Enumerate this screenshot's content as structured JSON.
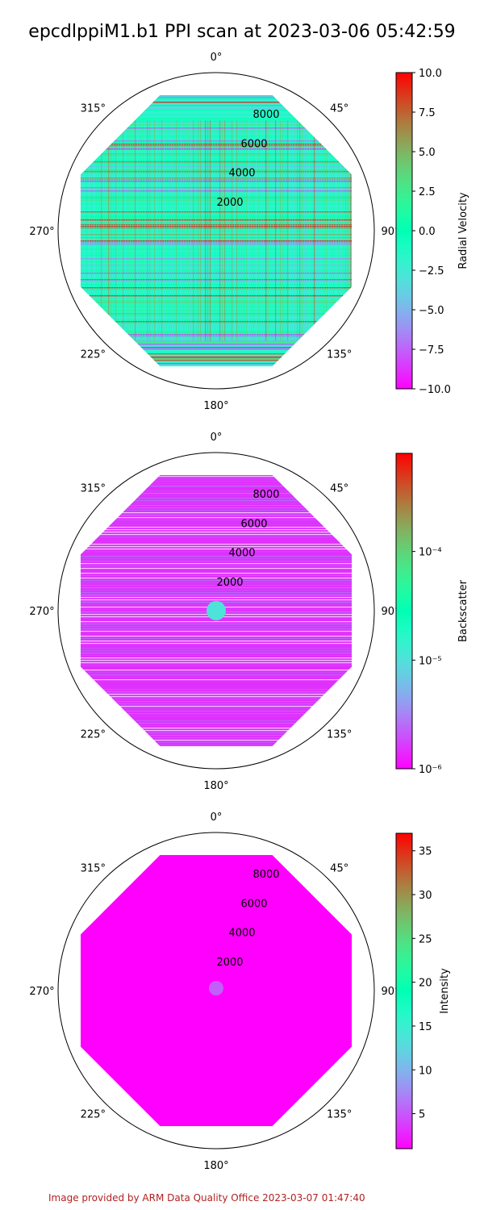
{
  "title": "epcdlppiM1.b1 PPI scan at 2023-03-06 05:42:59",
  "footer": "Image provided by ARM Data Quality Office 2023-03-07 01:47:40",
  "chart_data": [
    {
      "type": "polar",
      "angle_labels": [
        "0°",
        "45°",
        "90°",
        "135°",
        "180°",
        "225°",
        "270°",
        "315°"
      ],
      "radial_ticks": [
        2000,
        4000,
        6000,
        8000
      ],
      "radial_tick_labels": [
        "2000",
        "4000",
        "6000",
        "8000"
      ],
      "rlim": [
        0,
        10000
      ],
      "colorbar": {
        "label": "Radial Velocity",
        "scale": "linear",
        "range": [
          -10.0,
          10.0
        ],
        "ticks": [
          -10.0,
          -7.5,
          -5.0,
          -2.5,
          0.0,
          2.5,
          5.0,
          7.5,
          10.0
        ],
        "tick_labels": [
          "−10.0",
          "−7.5",
          "−5.0",
          "−2.5",
          "0.0",
          "2.5",
          "5.0",
          "7.5",
          "10.0"
        ],
        "colormap": "rainbow"
      },
      "dominant_value": -1.5
    },
    {
      "type": "polar",
      "angle_labels": [
        "0°",
        "45°",
        "90°",
        "135°",
        "180°",
        "225°",
        "270°",
        "315°"
      ],
      "radial_ticks": [
        2000,
        4000,
        6000,
        8000
      ],
      "radial_tick_labels": [
        "2000",
        "4000",
        "6000",
        "8000"
      ],
      "rlim": [
        0,
        10000
      ],
      "colorbar": {
        "label": "Backscatter",
        "scale": "log",
        "range": [
          1e-06,
          0.0008
        ],
        "ticks": [
          1e-06,
          1e-05,
          0.0001
        ],
        "tick_labels": [
          "10⁻⁶",
          "10⁻⁵",
          "10⁻⁴"
        ],
        "colormap": "rainbow"
      },
      "dominant_value": 1.5e-06
    },
    {
      "type": "polar",
      "angle_labels": [
        "0°",
        "45°",
        "90°",
        "135°",
        "180°",
        "225°",
        "270°",
        "315°"
      ],
      "radial_ticks": [
        2000,
        4000,
        6000,
        8000
      ],
      "radial_tick_labels": [
        "2000",
        "4000",
        "6000",
        "8000"
      ],
      "rlim": [
        0,
        10000
      ],
      "colorbar": {
        "label": "Intensity",
        "scale": "linear",
        "range": [
          1,
          37
        ],
        "ticks": [
          5,
          10,
          15,
          20,
          25,
          30,
          35
        ],
        "tick_labels": [
          "5",
          "10",
          "15",
          "20",
          "25",
          "30",
          "35"
        ],
        "colormap": "rainbow"
      },
      "dominant_value": 1
    }
  ]
}
